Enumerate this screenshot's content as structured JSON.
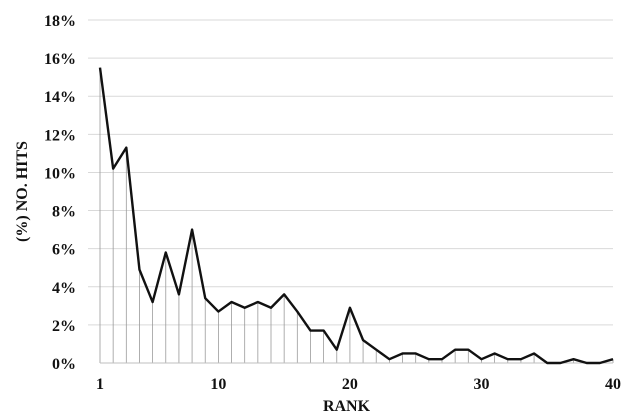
{
  "chart_data": {
    "type": "line",
    "title": "",
    "xlabel": "RANK",
    "ylabel": "(%) NO. HITS",
    "xlim": [
      1,
      40
    ],
    "ylim": [
      0,
      18
    ],
    "x_ticks": [
      1,
      10,
      20,
      30,
      40
    ],
    "y_ticks": [
      0,
      2,
      4,
      6,
      8,
      10,
      12,
      14,
      16,
      18
    ],
    "y_tick_suffix": "%",
    "grid": "horizontal",
    "legend": "none",
    "drop_lines": true,
    "line_color": "#111111",
    "x": [
      1,
      2,
      3,
      4,
      5,
      6,
      7,
      8,
      9,
      10,
      11,
      12,
      13,
      14,
      15,
      16,
      17,
      18,
      19,
      20,
      21,
      22,
      23,
      24,
      25,
      26,
      27,
      28,
      29,
      30,
      31,
      32,
      33,
      34,
      35,
      36,
      37,
      38,
      39,
      40
    ],
    "y": [
      15.5,
      10.2,
      11.3,
      4.9,
      3.2,
      5.8,
      3.6,
      7.0,
      3.4,
      2.7,
      3.2,
      2.9,
      3.2,
      2.9,
      3.6,
      2.7,
      1.7,
      1.7,
      0.7,
      2.9,
      1.2,
      0.7,
      0.2,
      0.5,
      0.5,
      0.2,
      0.2,
      0.7,
      0.7,
      0.2,
      0.5,
      0.2,
      0.2,
      0.5,
      0.0,
      0.0,
      0.2,
      0.0,
      0.0,
      0.2
    ]
  }
}
